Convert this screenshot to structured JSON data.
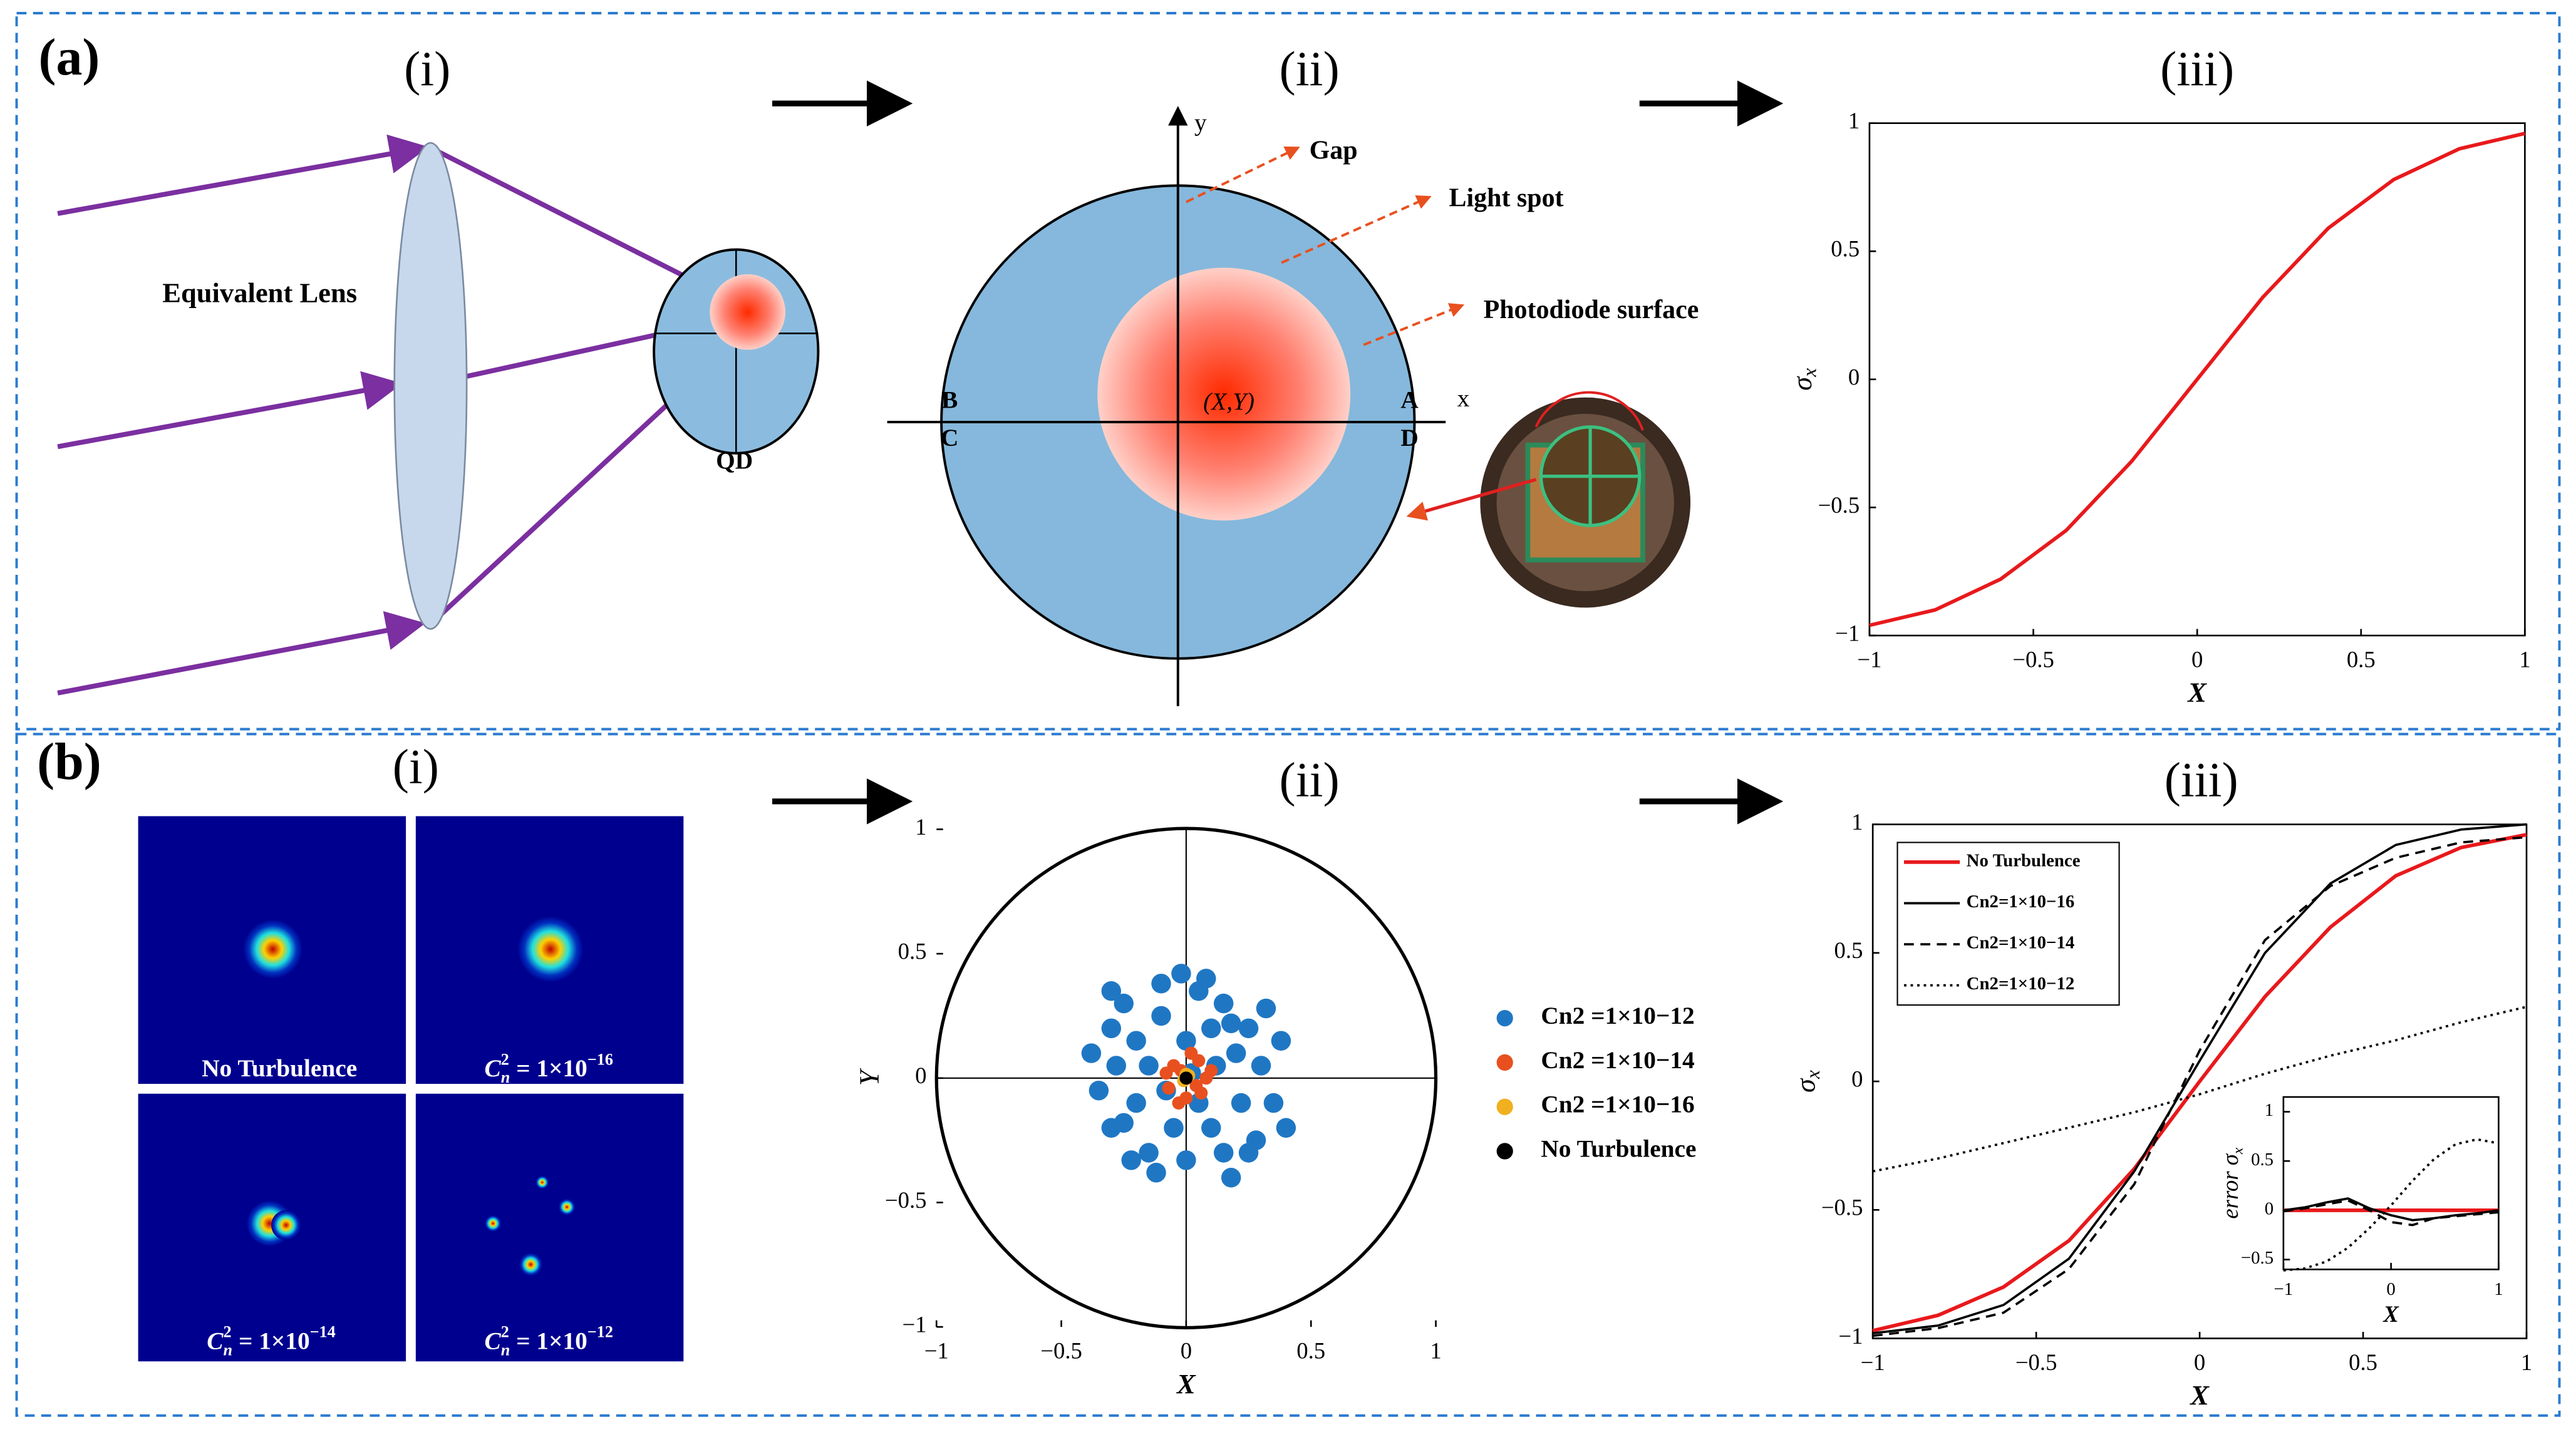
{
  "panel_a": {
    "label": "(a)",
    "i": "(i)",
    "ii": "(ii)",
    "lens": "Equivalent Lens",
    "qd": "QD",
    "gap": "Gap",
    "spot": "Light spot",
    "surface": "Photodiode surface",
    "B": "B",
    "A": "A",
    "C": "C",
    "D": "D",
    "x": "x",
    "y": "y",
    "center": "(X,Y)"
  },
  "panel_b": {
    "label": "(b)",
    "i": "(i)",
    "ii": "(ii)",
    "iii": "(iii)",
    "images": [
      {
        "text": "No Turbulence"
      },
      {
        "c": "C",
        "sub": "n",
        "sup": "2",
        "rest": " = 1×10",
        "exp": "−16"
      },
      {
        "c": "C",
        "sub": "n",
        "sup": "2",
        "rest": " = 1×10",
        "exp": "−14"
      },
      {
        "c": "C",
        "sub": "n",
        "sup": "2",
        "rest": " = 1×10",
        "exp": "−12"
      }
    ]
  },
  "chart_data": [
    {
      "type": "line",
      "title": "(iii)",
      "xlabel": "X",
      "ylabel": "σ",
      "ylabel_sub": "x",
      "box": true,
      "x": [
        -1,
        -0.8,
        -0.6,
        -0.4,
        -0.2,
        0,
        0.2,
        0.4,
        0.6,
        0.8,
        1
      ],
      "series": [
        {
          "color": "#e8191c",
          "values": [
            -0.96,
            -0.9,
            -0.78,
            -0.59,
            -0.32,
            0,
            0.32,
            0.59,
            0.78,
            0.9,
            0.96
          ]
        }
      ],
      "xlim": [
        -1,
        1
      ],
      "ylim": [
        -1,
        1
      ],
      "xticks": [
        {
          "value": -1,
          "label": "−1"
        },
        {
          "value": -0.5,
          "label": "−0.5"
        },
        0,
        0.5,
        1
      ],
      "yticks": [
        {
          "value": -1,
          "label": "−1"
        },
        {
          "value": -0.5,
          "label": "−0.5"
        },
        0,
        0.5,
        1
      ]
    },
    {
      "type": "scatter",
      "xlabel": "X",
      "ylabel": "Y",
      "legend": "right",
      "series": [
        {
          "name": "Cn2 =1×10−12",
          "color": "#1f77c4",
          "x": [
            -0.3,
            -0.25,
            -0.1,
            0.05,
            0.15,
            0.25,
            0.3,
            0.35,
            0.28,
            0.15,
            0,
            -0.15,
            -0.3,
            -0.35,
            -0.28,
            -0.2,
            -0.1,
            0.1,
            0.2,
            0.22,
            0.1,
            -0.05,
            -0.2,
            -0.15,
            0,
            0.12,
            0.05,
            -0.08,
            0.4,
            0.32,
            -0.38,
            -0.02,
            0.18,
            -0.22,
            0.08,
            -0.3,
            0.25,
            0.38,
            -0.12,
            0.02,
            -0.25,
            0.18
          ],
          "values": [
            0.2,
            0.3,
            0.38,
            0.35,
            0.3,
            0.2,
            0.05,
            -0.1,
            -0.25,
            -0.3,
            -0.33,
            -0.3,
            -0.2,
            -0.05,
            0.05,
            0.15,
            0.25,
            0.2,
            0.1,
            -0.1,
            -0.2,
            -0.2,
            -0.1,
            0.05,
            0.15,
            0.05,
            -0.1,
            -0.05,
            -0.2,
            0.28,
            0.1,
            0.42,
            -0.4,
            -0.33,
            0.4,
            0.35,
            -0.3,
            0.15,
            -0.38,
            0.02,
            -0.18,
            0.22
          ]
        },
        {
          "name": "Cn2 =1×10−14",
          "color": "#e8501f",
          "x": [
            -0.05,
            0.05,
            0.08,
            0.06,
            0,
            -0.07,
            -0.08,
            0.02,
            0.1,
            -0.03,
            0.04,
            -0.02
          ],
          "values": [
            0.05,
            0.07,
            0,
            -0.06,
            -0.08,
            -0.04,
            0.02,
            0.1,
            0.03,
            -0.1,
            -0.03,
            0.03
          ]
        },
        {
          "name": "Cn2 =1×10−16",
          "color": "#f0b020",
          "x": [
            0.01,
            -0.01,
            0
          ],
          "values": [
            0.01,
            -0.01,
            0.015
          ]
        },
        {
          "name": "No Turbulence",
          "color": "#000000",
          "x": [
            0
          ],
          "values": [
            0
          ]
        }
      ],
      "xlim": [
        -1,
        1
      ],
      "ylim": [
        -1,
        1
      ],
      "xticks": [
        {
          "value": -1,
          "label": "−1"
        },
        {
          "value": -0.5,
          "label": "−0.5"
        },
        0,
        0.5,
        1
      ],
      "yticks": [
        {
          "value": -1,
          "label": "−1"
        },
        {
          "value": -0.5,
          "label": "−0.5"
        },
        0,
        0.5,
        1
      ]
    },
    {
      "type": "line",
      "xlabel": "X",
      "ylabel": "σ",
      "ylabel_sub": "x",
      "box": true,
      "legend": "upper left",
      "x": [
        -1,
        -0.8,
        -0.6,
        -0.4,
        -0.2,
        0,
        0.2,
        0.4,
        0.6,
        0.8,
        1
      ],
      "series": [
        {
          "name": "No Turbulence",
          "color": "#e8191c",
          "values": [
            -0.97,
            -0.91,
            -0.8,
            -0.62,
            -0.34,
            0,
            0.33,
            0.6,
            0.8,
            0.91,
            0.96
          ]
        },
        {
          "name": "Cn2=1×10−16",
          "color": "#000000",
          "values": [
            -0.98,
            -0.95,
            -0.87,
            -0.69,
            -0.35,
            0.08,
            0.5,
            0.77,
            0.92,
            0.98,
            1
          ]
        },
        {
          "name": "Cn2=1×10−14",
          "color": "#000000",
          "dash": "dashed",
          "values": [
            -0.99,
            -0.96,
            -0.9,
            -0.73,
            -0.4,
            0.12,
            0.55,
            0.76,
            0.87,
            0.93,
            0.95
          ]
        },
        {
          "name": "Cn2=1×10−12",
          "color": "#000000",
          "dash": "dotted",
          "values": [
            -0.35,
            -0.3,
            -0.24,
            -0.18,
            -0.12,
            -0.05,
            0.03,
            0.1,
            0.16,
            0.23,
            0.29
          ]
        }
      ],
      "xlim": [
        -1,
        1
      ],
      "ylim": [
        -1,
        1
      ],
      "xticks": [
        {
          "value": -1,
          "label": "−1"
        },
        {
          "value": -0.5,
          "label": "−0.5"
        },
        0,
        0.5,
        1
      ],
      "yticks": [
        {
          "value": -1,
          "label": "−1"
        },
        {
          "value": -0.5,
          "label": "−0.5"
        },
        0,
        0.5,
        1
      ]
    },
    {
      "type": "line",
      "xlabel": "X",
      "ylabel": "error σ",
      "ylabel_sub": "x",
      "box": true,
      "x": [
        -1,
        -0.8,
        -0.6,
        -0.4,
        -0.2,
        0,
        0.2,
        0.4,
        0.6,
        0.8,
        1
      ],
      "series": [
        {
          "color": "#e8191c",
          "values": [
            0,
            0,
            0,
            0,
            0,
            0,
            0,
            0,
            0,
            0,
            0
          ]
        },
        {
          "color": "#000000",
          "values": [
            0,
            0.03,
            0.08,
            0.12,
            0.02,
            -0.05,
            -0.1,
            -0.08,
            -0.05,
            -0.03,
            0
          ]
        },
        {
          "color": "#000000",
          "dash": "dashed",
          "values": [
            -0.01,
            0.02,
            0.06,
            0.1,
            0,
            -0.12,
            -0.15,
            -0.08,
            -0.06,
            -0.04,
            -0.02
          ]
        },
        {
          "color": "#000000",
          "dash": "dotted",
          "values": [
            -0.61,
            -0.59,
            -0.52,
            -0.38,
            -0.18,
            0.05,
            0.3,
            0.52,
            0.67,
            0.72,
            0.68
          ]
        }
      ],
      "xlim": [
        -1,
        1
      ],
      "ylim": [
        -0.6,
        1.15
      ],
      "xticks": [
        {
          "value": -1,
          "label": "−1"
        },
        0,
        1
      ],
      "yticks": [
        {
          "value": -0.5,
          "label": "−0.5"
        },
        0,
        0.5,
        1
      ]
    }
  ]
}
